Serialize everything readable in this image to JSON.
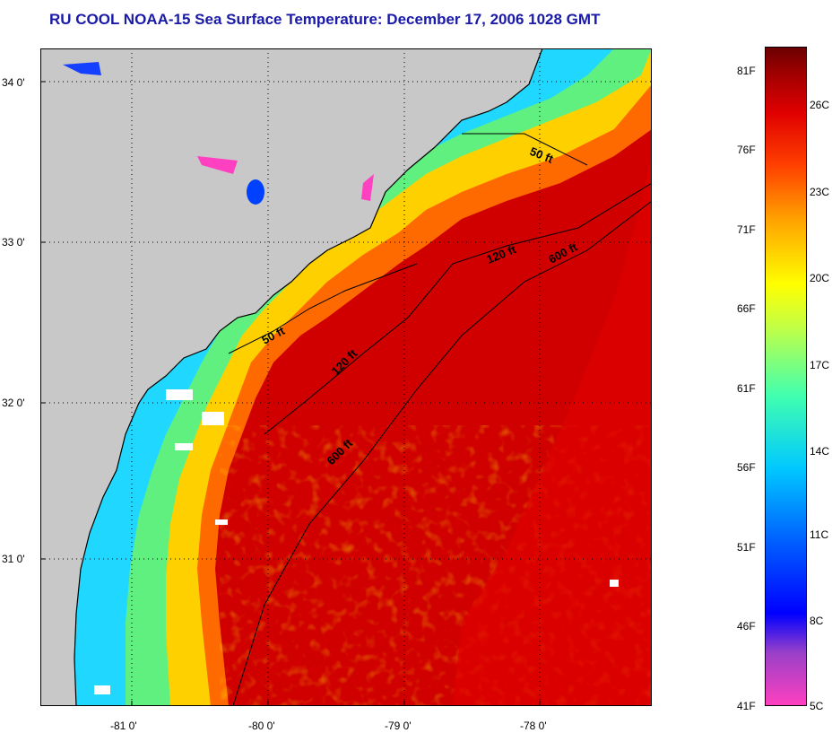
{
  "title": "RU COOL  NOAA-15  Sea Surface Temperature:  December 17, 2006 1028 GMT",
  "map": {
    "latitude_labels": [
      "34 0'",
      "33 0'",
      "32 0'",
      "31 0'"
    ],
    "longitude_labels": [
      "-81 0'",
      "-80 0'",
      "-79 0'",
      "-78 0'"
    ],
    "latitude_values": [
      34.0,
      33.0,
      32.0,
      31.0
    ],
    "longitude_values": [
      -81.0,
      -80.0,
      -79.0,
      -78.0
    ],
    "isobath_labels": {
      "inshore_north": "50 ft",
      "mid_north": "120 ft",
      "shelf_break_north": "600 ft",
      "inshore_south": "50 ft",
      "mid_south": "120 ft",
      "shelf_break_south": "600 ft"
    },
    "colors": {
      "land": "#c8c8c8",
      "cloud": "#ffffff",
      "coastline": "#000000"
    }
  },
  "colorbar": {
    "fahrenheit_labels": [
      "81F",
      "76F",
      "71F",
      "66F",
      "61F",
      "56F",
      "51F",
      "46F",
      "41F"
    ],
    "celsius_labels": [
      "26C",
      "23C",
      "20C",
      "17C",
      "14C",
      "11C",
      "8C",
      "5C"
    ],
    "stops": [
      "#ff40c0",
      "#9a40c8",
      "#0000ff",
      "#0060ff",
      "#00c8ff",
      "#40ffb0",
      "#c8ff40",
      "#ffff00",
      "#ffa000",
      "#ff4000",
      "#e00000",
      "#a00000",
      "#6a0000"
    ]
  }
}
